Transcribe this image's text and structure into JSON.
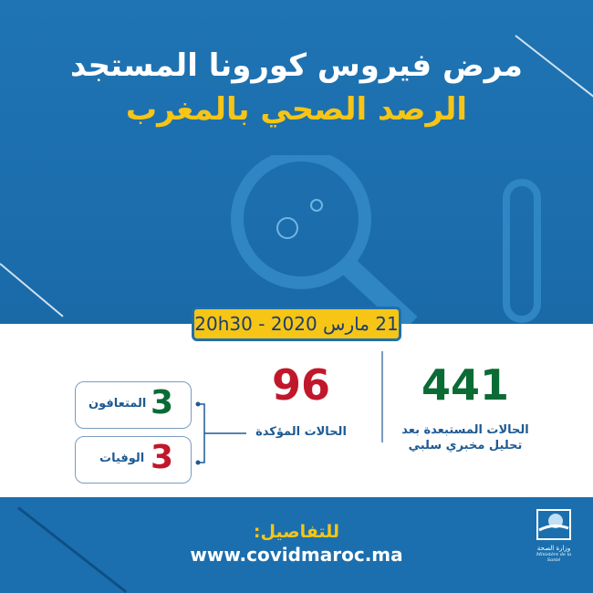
{
  "header": {
    "title": "مرض فيروس كورونا المستجد",
    "subtitle": "الرصد الصحي بالمغرب"
  },
  "date": "21 مارس 2020 - 20h30",
  "stats": {
    "excluded": {
      "value": "441",
      "label_line1": "الحالات المستبعدة بعد",
      "label_line2": "تحليل مخبري سلبي"
    },
    "confirmed": {
      "value": "96",
      "label": "الحالات المؤكدة"
    },
    "recovered": {
      "value": "3",
      "label": "المتعافون"
    },
    "deaths": {
      "value": "3",
      "label": "الوفيات"
    }
  },
  "footer": {
    "details_label": "للتفاصيل:",
    "url": "www.covidmaroc.ma",
    "logo_text": "وزارة الصحة",
    "logo_text_fr": "Ministère de la Santé"
  },
  "colors": {
    "blue": "#1b6fae",
    "yellow": "#f6c516",
    "green": "#0b6b35",
    "red": "#c0182a"
  }
}
